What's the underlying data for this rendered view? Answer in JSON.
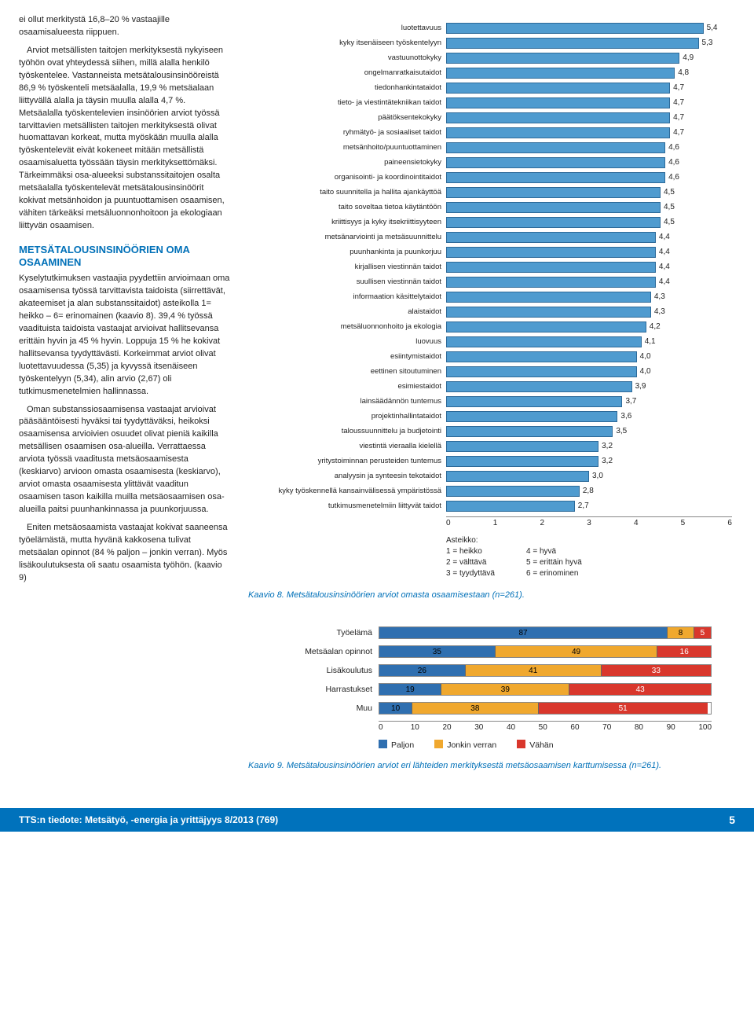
{
  "left": {
    "p1": "ei ollut merkitystä 16,8–20 % vastaajille osaamisalueesta riippuen.",
    "p2": "Arviot metsällisten taitojen merkityksestä nykyiseen työhön ovat yhteydessä siihen, millä alalla henkilö työskentelee. Vastanneista metsätalousinsinööreistä 86,9 % työskenteli metsäalalla, 19,9 % metsäalaan liittyvällä alalla ja täysin muulla alalla 4,7 %. Metsäalalla työskentelevien insinöörien arviot työssä tarvittavien metsällisten taitojen merkityksestä olivat huomattavan korkeat, mutta myöskään muulla alalla työskentelevät eivät kokeneet mitään metsällistä osaamisaluetta työssään täysin merkityksettömäksi. Tärkeimmäksi osa-alueeksi substanssi­taitojen osalta metsäalalla työskentelevät metsätalousinsinöörit kokivat metsänhoidon ja puuntuottamisen osaamisen, vähiten tärkeäksi metsäluonnonhoitoon ja ekologiaan liittyvän osaamisen.",
    "h1": "METSÄTALOUSINSINÖÖRIEN OMA OSAAMINEN",
    "p3": "Kyselytutkimuksen vastaajia pyydettiin arvioimaan oma osaamisensa työssä tarvittavista taidoista (siirrettävät, akateemiset ja alan substanssitaidot) asteikolla 1= heikko – 6= erinomainen (kaavio 8). 39,4 % työssä vaadituista taidoista vastaajat arvioivat hallitsevansa erittäin hyvin ja 45 % hyvin. Loppuja 15 % he kokivat hallitsevansa tyydyttävästi. Korkeimmat arviot olivat luotettavuudessa (5,35) ja kyvyssä itsenäiseen työskentelyyn (5,34), alin arvio (2,67) oli tutkimusmenetelmien hallinnassa.",
    "p4": "Oman substanssiosaamisensa vastaajat arvioivat pääsääntöisesti hyväksi tai tyydyttäväksi, heikoksi osaamisensa arvioivien osuudet olivat pieniä kaikilla metsällisen osaamisen osa-alueilla. Verrattaessa arviota työssä vaaditusta metsäosaamisesta (keskiarvo) arvioon omasta osaamisesta (keskiarvo), arviot omasta osaamisesta ylittävät vaaditun osaamisen tason kaikilla muilla metsäosaamisen osa-alueilla paitsi puunhankinnassa ja puunkorjuussa.",
    "p5": "Eniten metsäosaamista vastaajat kokivat saaneensa työelämästä, mutta hyvänä kakkosena tulivat metsäalan opinnot (84 % paljon – jonkin verran). Myös lisäkoulutuksesta oli saatu osaamista työhön. (kaavio 9)"
  },
  "chart8": {
    "type": "bar",
    "xmax": 6,
    "bar_color": "#4f9bcf",
    "bar_border": "#2d6a99",
    "items": [
      {
        "label": "luotettavuus",
        "v": 5.4,
        "t": "5,4"
      },
      {
        "label": "kyky itsenäiseen työskentelyyn",
        "v": 5.3,
        "t": "5,3"
      },
      {
        "label": "vastuunottokyky",
        "v": 4.9,
        "t": "4,9"
      },
      {
        "label": "ongelmanratkaisutaidot",
        "v": 4.8,
        "t": "4,8"
      },
      {
        "label": "tiedonhankintataidot",
        "v": 4.7,
        "t": "4,7"
      },
      {
        "label": "tieto- ja viestintätekniikan taidot",
        "v": 4.7,
        "t": "4,7"
      },
      {
        "label": "päätöksentekokyky",
        "v": 4.7,
        "t": "4,7"
      },
      {
        "label": "ryhmätyö- ja sosiaaliset taidot",
        "v": 4.7,
        "t": "4,7"
      },
      {
        "label": "metsänhoito/puuntuottaminen",
        "v": 4.6,
        "t": "4,6"
      },
      {
        "label": "paineensietokyky",
        "v": 4.6,
        "t": "4,6"
      },
      {
        "label": "organisointi- ja koordinointitaidot",
        "v": 4.6,
        "t": "4,6"
      },
      {
        "label": "taito suunnitella ja hallita ajankäyttöä",
        "v": 4.5,
        "t": "4,5"
      },
      {
        "label": "taito soveltaa tietoa käytäntöön",
        "v": 4.5,
        "t": "4,5"
      },
      {
        "label": "kriittisyys ja kyky itsekriittisyyteen",
        "v": 4.5,
        "t": "4,5"
      },
      {
        "label": "metsänarviointi ja metsäsuunnittelu",
        "v": 4.4,
        "t": "4,4"
      },
      {
        "label": "puunhankinta ja puunkorjuu",
        "v": 4.4,
        "t": "4,4"
      },
      {
        "label": "kirjallisen viestinnän taidot",
        "v": 4.4,
        "t": "4,4"
      },
      {
        "label": "suullisen viestinnän taidot",
        "v": 4.4,
        "t": "4,4"
      },
      {
        "label": "informaation käsittelytaidot",
        "v": 4.3,
        "t": "4,3"
      },
      {
        "label": "alaistaidot",
        "v": 4.3,
        "t": "4,3"
      },
      {
        "label": "metsäluonnonhoito ja ekologia",
        "v": 4.2,
        "t": "4,2"
      },
      {
        "label": "luovuus",
        "v": 4.1,
        "t": "4,1"
      },
      {
        "label": "esiintymistaidot",
        "v": 4.0,
        "t": "4,0"
      },
      {
        "label": "eettinen sitoutuminen",
        "v": 4.0,
        "t": "4,0"
      },
      {
        "label": "esimiestaidot",
        "v": 3.9,
        "t": "3,9"
      },
      {
        "label": "lainsäädännön tuntemus",
        "v": 3.7,
        "t": "3,7"
      },
      {
        "label": "projektinhallintataidot",
        "v": 3.6,
        "t": "3,6"
      },
      {
        "label": "taloussuunnittelu ja budjetointi",
        "v": 3.5,
        "t": "3,5"
      },
      {
        "label": "viestintä vieraalla kielellä",
        "v": 3.2,
        "t": "3,2"
      },
      {
        "label": "yritystoiminnan perusteiden tuntemus",
        "v": 3.2,
        "t": "3,2"
      },
      {
        "label": "analyysin ja synteesin tekotaidot",
        "v": 3.0,
        "t": "3,0"
      },
      {
        "label": "kyky työskennellä kansainvälisessä ympäristössä",
        "v": 2.8,
        "t": "2,8"
      },
      {
        "label": "tutkimusmenetelmiin liittyvät taidot",
        "v": 2.7,
        "t": "2,7"
      }
    ],
    "axis": [
      "0",
      "1",
      "2",
      "3",
      "4",
      "5",
      "6"
    ],
    "legend_title": "Asteikko:",
    "legend_left": [
      "1 = heikko",
      "2 = välttävä",
      "3 = tyydyttävä"
    ],
    "legend_right": [
      "4 = hyvä",
      "5 = erittäin hyvä",
      "6 = erinominen"
    ],
    "caption": "Kaavio 8. Metsätalousinsinöörien arviot omasta osaamisestaan (n=261)."
  },
  "chart9": {
    "type": "stacked-bar",
    "colors": {
      "a": "#2f6fb0",
      "b": "#f0a82e",
      "c": "#d9372c"
    },
    "series": [
      "Paljon",
      "Jonkin verran",
      "Vähän"
    ],
    "xmax": 100,
    "items": [
      {
        "label": "Työelämä",
        "a": 87,
        "b": 8,
        "c": 5
      },
      {
        "label": "Metsäalan opinnot",
        "a": 35,
        "b": 49,
        "c": 16
      },
      {
        "label": "Lisäkoulutus",
        "a": 26,
        "b": 41,
        "c": 33
      },
      {
        "label": "Harrastukset",
        "a": 19,
        "b": 39,
        "c": 43
      },
      {
        "label": "Muu",
        "a": 10,
        "b": 38,
        "c": 51
      }
    ],
    "axis": [
      "0",
      "10",
      "20",
      "30",
      "40",
      "50",
      "60",
      "70",
      "80",
      "90",
      "100"
    ],
    "caption": "Kaavio 9. Metsätalousinsinöörien arviot eri lähteiden merkityksestä metsäosaamisen karttumisessa (n=261)."
  },
  "footer": {
    "text": "TTS:n tiedote: Metsätyö, -energia ja yrittäjyys 8/2013 (769)",
    "page": "5"
  }
}
